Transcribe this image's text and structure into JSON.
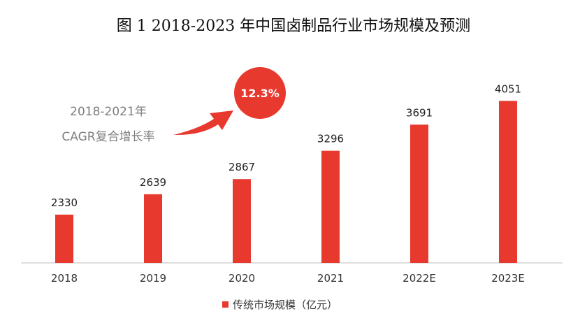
{
  "chart_data": {
    "type": "bar",
    "title": "图 1 2018-2023 年中国卤制品行业市场规模及预测",
    "categories": [
      "2018",
      "2019",
      "2020",
      "2021",
      "2022E",
      "2023E"
    ],
    "series": [
      {
        "name": "传统市场规模（亿元）",
        "values": [
          2330,
          2639,
          2867,
          3296,
          3691,
          4051
        ]
      }
    ],
    "ylim": [
      1600,
      4350
    ],
    "grid": false,
    "legend": "bottom-center",
    "annotations": [
      {
        "label_line1": "2018-2021年",
        "label_line2": "CAGR复合增长率",
        "value": "12.3%"
      }
    ]
  },
  "colors": {
    "bar": "#e8392f",
    "axis": "#bfbfbf",
    "annotation_text": "#7f7f7f"
  }
}
